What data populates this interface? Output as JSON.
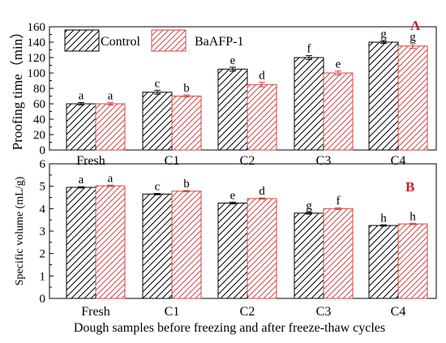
{
  "colors": {
    "control_stroke": "#000000",
    "baafp_stroke": "#d64545",
    "panel_letter": "#c0202a"
  },
  "x_axis_label": "Dough samples before freezing and after freeze-thaw cycles",
  "chart_data": [
    {
      "panel": "A",
      "type": "bar",
      "ylabel": "Proofing time（min）",
      "ylim": [
        0,
        160
      ],
      "yticks": [
        0,
        20,
        40,
        60,
        80,
        100,
        120,
        140,
        160
      ],
      "categories": [
        "Fresh",
        "C1",
        "C2",
        "C3",
        "C4"
      ],
      "legend": "top-left",
      "series": [
        {
          "name": "Control",
          "values": [
            60,
            75,
            105,
            120,
            140
          ],
          "errors": [
            1.5,
            2.5,
            2.5,
            2.5,
            1.5
          ],
          "letters": [
            "a",
            "c",
            "e",
            "f",
            "g"
          ]
        },
        {
          "name": "BaAFP-1",
          "values": [
            60,
            70,
            85,
            100,
            135
          ],
          "errors": [
            1.5,
            1.5,
            3,
            2.5,
            3
          ],
          "letters": [
            "a",
            "b",
            "d",
            "e",
            "g"
          ]
        }
      ]
    },
    {
      "panel": "B",
      "type": "bar",
      "ylabel": "Specific volume (mL/g)",
      "ylim": [
        0,
        6
      ],
      "yticks": [
        0,
        1,
        2,
        3,
        4,
        5,
        6
      ],
      "categories": [
        "Fresh",
        "C1",
        "C2",
        "C3",
        "C4"
      ],
      "series": [
        {
          "name": "Control",
          "values": [
            4.95,
            4.65,
            4.25,
            3.8,
            3.25
          ],
          "errors": [
            0.03,
            0.03,
            0.04,
            0.04,
            0.03
          ],
          "letters": [
            "a",
            "c",
            "e",
            "g",
            "h"
          ]
        },
        {
          "name": "BaAFP-1",
          "values": [
            5.02,
            4.78,
            4.45,
            4.0,
            3.32
          ],
          "errors": [
            0.03,
            0.03,
            0.03,
            0.04,
            0.03
          ],
          "letters": [
            "a",
            "b",
            "d",
            "f",
            "h"
          ]
        }
      ]
    }
  ]
}
